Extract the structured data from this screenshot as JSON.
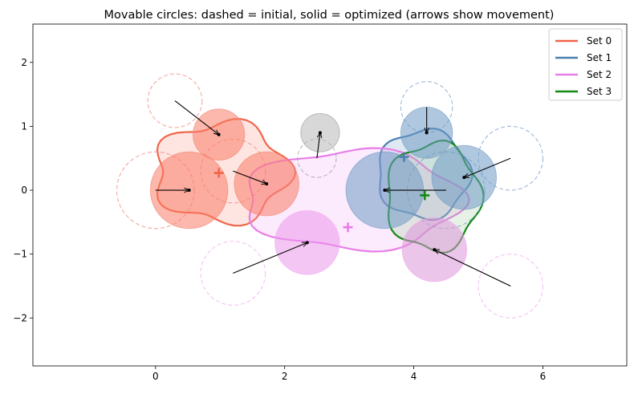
{
  "chart_data": {
    "type": "scatter",
    "title": "Movable circles: dashed = initial, solid = optimized (arrows show movement)",
    "xlabel": "",
    "ylabel": "",
    "xlim": [
      -1.9,
      7.3
    ],
    "ylim": [
      -2.75,
      2.6
    ],
    "xticks": [
      0,
      2,
      4,
      6
    ],
    "yticks": [
      -2,
      -1,
      0,
      1,
      2
    ],
    "grid": false,
    "legend_placement": "top-right",
    "legend": [
      {
        "label": "Set 0",
        "color": "#f0664a"
      },
      {
        "label": "Set 1",
        "color": "#4a7fb0"
      },
      {
        "label": "Set 2",
        "color": "#e87ee8"
      },
      {
        "label": "Set 3",
        "color": "#138a13"
      }
    ],
    "sets": [
      {
        "name": "Set 0",
        "color": "#f0664a",
        "fill": "#fa8a78",
        "centroid": [
          0.98,
          0.27
        ],
        "hull_center": [
          1.02,
          0.28
        ],
        "hull_rx": 2.05,
        "hull_ry": 1.55,
        "hull_wobble": 0.12
      },
      {
        "name": "Set 1",
        "color": "#4a7fb0",
        "fill": "#6f9ac4",
        "centroid": [
          3.85,
          0.52
        ],
        "hull_center": [
          4.15,
          0.25
        ],
        "hull_rx": 1.42,
        "hull_ry": 1.38,
        "hull_wobble": 0.07
      },
      {
        "name": "Set 2",
        "color": "#e87ee8",
        "fill": "#f1a6f1",
        "centroid": [
          2.98,
          -0.58
        ],
        "hull_center": [
          3.05,
          -0.15
        ],
        "hull_rx": 3.35,
        "hull_ry": 1.55,
        "hull_wobble": 0.08
      },
      {
        "name": "Set 3",
        "color": "#138a13",
        "fill": "#8cc48c",
        "centroid": [
          4.17,
          -0.08
        ],
        "hull_center": [
          4.3,
          -0.1
        ],
        "hull_rx": 1.45,
        "hull_ry": 1.68,
        "hull_wobble": 0.08
      }
    ],
    "circles": [
      {
        "id": "c0",
        "color": "#f08070",
        "fill": "#fa7d68",
        "initial": [
          0.3,
          1.4
        ],
        "initial_r": 0.42,
        "final": [
          0.98,
          0.87
        ],
        "final_r": 0.4
      },
      {
        "id": "c1",
        "color": "#f08070",
        "fill": "#fa7d68",
        "initial": [
          0.0,
          0.0
        ],
        "initial_r": 0.6,
        "final": [
          0.52,
          0.0
        ],
        "final_r": 0.6
      },
      {
        "id": "c2",
        "color": "#f08070",
        "fill": "#fa7d68",
        "initial": [
          1.2,
          0.3
        ],
        "initial_r": 0.5,
        "final": [
          1.72,
          0.1
        ],
        "final_r": 0.5
      },
      {
        "id": "c3",
        "color": "#999999",
        "fill": "#b8b8b8",
        "initial": [
          2.5,
          0.5
        ],
        "initial_r": 0.3,
        "final": [
          2.55,
          0.9
        ],
        "final_r": 0.3
      },
      {
        "id": "c4",
        "color": "#6f9ac4",
        "fill": "#6f9ac4",
        "initial": [
          4.2,
          1.3
        ],
        "initial_r": 0.4,
        "final": [
          4.2,
          0.9
        ],
        "final_r": 0.4
      },
      {
        "id": "c5",
        "color": "#6f9ac4",
        "fill": "#6f9ac4",
        "initial": [
          4.5,
          0.0
        ],
        "initial_r": 0.6,
        "final": [
          3.55,
          0.0
        ],
        "final_r": 0.6
      },
      {
        "id": "c6",
        "color": "#6f9ac4",
        "fill": "#6f9ac4",
        "initial": [
          5.5,
          0.5
        ],
        "initial_r": 0.5,
        "final": [
          4.78,
          0.2
        ],
        "final_r": 0.5
      },
      {
        "id": "c7",
        "color": "#f1a6f1",
        "fill": "#eb97eb",
        "initial": [
          1.2,
          -1.3
        ],
        "initial_r": 0.5,
        "final": [
          2.35,
          -0.82
        ],
        "final_r": 0.5
      },
      {
        "id": "c8",
        "color": "#f1a6f1",
        "fill": "#dc96d8",
        "initial": [
          5.5,
          -1.5
        ],
        "initial_r": 0.5,
        "final": [
          4.32,
          -0.93
        ],
        "final_r": 0.5
      }
    ]
  }
}
